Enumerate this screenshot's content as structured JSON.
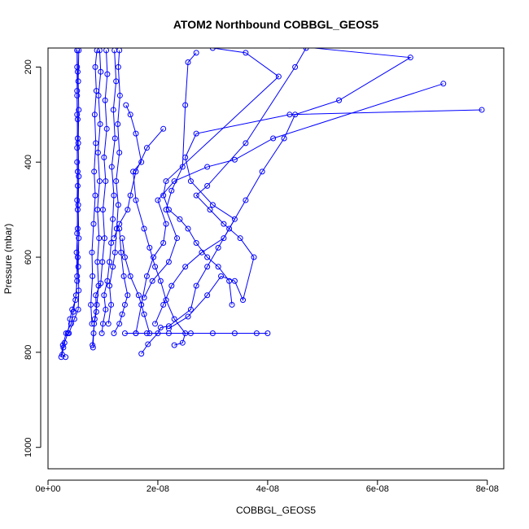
{
  "chart_data": {
    "type": "scatter",
    "title": "ATOM2 Northbound COBBGL_GEOS5",
    "xlabel": "COBBGL_GEOS5",
    "ylabel": "Pressure (mbar)",
    "xlim": [
      0,
      8.3e-08
    ],
    "ylim": [
      1045,
      160
    ],
    "y_reversed": true,
    "grid": false,
    "x_ticks": [
      0,
      2e-08,
      4e-08,
      6e-08,
      8e-08
    ],
    "x_tick_labels": [
      "0e+00",
      "2e-08",
      "4e-08",
      "6e-08",
      "8e-08"
    ],
    "y_ticks": [
      200,
      400,
      600,
      800,
      1000
    ],
    "y_tick_labels": [
      "200",
      "400",
      "600",
      "800",
      "1000"
    ],
    "series_color": "#0000ff",
    "series": [
      {
        "values": [
          [
            3.2e-09,
            810
          ],
          [
            2.6e-09,
            805
          ],
          [
            2.8e-09,
            790
          ],
          [
            3e-09,
            780
          ],
          [
            3.6e-09,
            760
          ],
          [
            4e-09,
            730
          ],
          [
            4.4e-09,
            710
          ],
          [
            5e-09,
            690
          ],
          [
            5.3e-09,
            650
          ],
          [
            5.4e-09,
            600
          ],
          [
            5.3e-09,
            550
          ],
          [
            5.4e-09,
            500
          ],
          [
            5.4e-09,
            450
          ],
          [
            5.3e-09,
            400
          ],
          [
            5.4e-09,
            350
          ],
          [
            5.3e-09,
            300
          ],
          [
            5.3e-09,
            250
          ],
          [
            5.3e-09,
            200
          ],
          [
            5.3e-09,
            165
          ]
        ]
      },
      {
        "values": [
          [
            2.4e-09,
            810
          ],
          [
            2.7e-09,
            785
          ],
          [
            3.3e-09,
            760
          ],
          [
            4.2e-09,
            740
          ],
          [
            4.6e-09,
            715
          ],
          [
            5.1e-09,
            680
          ],
          [
            5.3e-09,
            640
          ],
          [
            5.2e-09,
            590
          ],
          [
            5.4e-09,
            540
          ],
          [
            5.3e-09,
            480
          ],
          [
            5.4e-09,
            420
          ],
          [
            5.3e-09,
            370
          ],
          [
            5.4e-09,
            310
          ],
          [
            5.3e-09,
            260
          ],
          [
            5.4e-09,
            210
          ],
          [
            5.3e-09,
            165
          ]
        ]
      },
      {
        "values": [
          [
            3.8e-09,
            760
          ],
          [
            4.8e-09,
            730
          ],
          [
            5.5e-09,
            710
          ],
          [
            5.6e-09,
            670
          ],
          [
            5.5e-09,
            620
          ],
          [
            5.6e-09,
            560
          ],
          [
            5.5e-09,
            490
          ],
          [
            5.6e-09,
            430
          ],
          [
            5.5e-09,
            360
          ],
          [
            5.6e-09,
            290
          ],
          [
            5.5e-09,
            230
          ],
          [
            5.6e-09,
            165
          ]
        ]
      },
      {
        "values": [
          [
            8.2e-09,
            790
          ],
          [
            8.3e-09,
            760
          ],
          [
            8.5e-09,
            730
          ],
          [
            8.9e-09,
            700
          ],
          [
            9.2e-09,
            660
          ],
          [
            9e-09,
            610
          ],
          [
            9.3e-09,
            560
          ],
          [
            9e-09,
            500
          ],
          [
            9.4e-09,
            440
          ],
          [
            9.1e-09,
            380
          ],
          [
            9.5e-09,
            320
          ],
          [
            9.2e-09,
            260
          ],
          [
            9.6e-09,
            210
          ],
          [
            9.4e-09,
            165
          ]
        ]
      },
      {
        "values": [
          [
            8.1e-09,
            785
          ],
          [
            8.4e-09,
            740
          ],
          [
            8.8e-09,
            715
          ],
          [
            8.7e-09,
            680
          ],
          [
            9.6e-09,
            655
          ],
          [
            9.9e-09,
            610
          ],
          [
            1.03e-08,
            560
          ],
          [
            1e-08,
            500
          ],
          [
            1.05e-08,
            440
          ],
          [
            1.02e-08,
            390
          ],
          [
            1.07e-08,
            330
          ],
          [
            1.04e-08,
            270
          ],
          [
            1.08e-08,
            215
          ],
          [
            1.06e-08,
            165
          ]
        ]
      },
      {
        "values": [
          [
            9.8e-09,
            760
          ],
          [
            1e-08,
            740
          ],
          [
            1.05e-08,
            710
          ],
          [
            1.02e-08,
            680
          ],
          [
            1.08e-08,
            650
          ],
          [
            1.12e-08,
            610
          ],
          [
            1.15e-08,
            570
          ],
          [
            1.18e-08,
            520
          ],
          [
            1.2e-08,
            470
          ],
          [
            1.16e-08,
            410
          ],
          [
            1.22e-08,
            350
          ],
          [
            1.19e-08,
            290
          ],
          [
            1.24e-08,
            230
          ],
          [
            1.21e-08,
            165
          ]
        ]
      },
      {
        "values": [
          [
            8e-09,
            740
          ],
          [
            7.8e-09,
            700
          ],
          [
            8.1e-09,
            640
          ],
          [
            8e-09,
            590
          ],
          [
            8.3e-09,
            530
          ],
          [
            8.6e-09,
            470
          ],
          [
            8.4e-09,
            420
          ],
          [
            8.7e-09,
            360
          ],
          [
            8.5e-09,
            300
          ],
          [
            8.8e-09,
            250
          ],
          [
            8.6e-09,
            200
          ],
          [
            8.9e-09,
            165
          ]
        ]
      },
      {
        "values": [
          [
            1.1e-08,
            740
          ],
          [
            1.15e-08,
            700
          ],
          [
            1.12e-08,
            660
          ],
          [
            1.18e-08,
            620
          ],
          [
            1.22e-08,
            590
          ],
          [
            1.25e-08,
            540
          ],
          [
            1.28e-08,
            490
          ],
          [
            1.24e-08,
            440
          ],
          [
            1.3e-08,
            380
          ],
          [
            1.27e-08,
            320
          ],
          [
            1.31e-08,
            260
          ],
          [
            1.28e-08,
            200
          ],
          [
            1.3e-08,
            165
          ]
        ]
      },
      {
        "values": [
          [
            1.2e-08,
            760
          ],
          [
            1.3e-08,
            740
          ],
          [
            1.35e-08,
            720
          ],
          [
            1.4e-08,
            700
          ],
          [
            1.45e-08,
            680
          ],
          [
            1.38e-08,
            640
          ],
          [
            1.33e-08,
            590
          ],
          [
            1.3e-08,
            540
          ]
        ]
      },
      {
        "values": [
          [
            1.7e-08,
            803
          ],
          [
            1.82e-08,
            783
          ],
          [
            2e-08,
            760
          ],
          [
            2.05e-08,
            748
          ],
          [
            2.2e-08,
            745
          ],
          [
            2.6e-08,
            710
          ],
          [
            2.7e-08,
            660
          ],
          [
            2.9e-08,
            620
          ],
          [
            3.1e-08,
            580
          ],
          [
            3.3e-08,
            540
          ],
          [
            3.6e-08,
            480
          ],
          [
            3.9e-08,
            420
          ],
          [
            4.3e-08,
            350
          ],
          [
            4.5e-08,
            300
          ],
          [
            5.3e-08,
            270
          ],
          [
            6.6e-08,
            180
          ],
          [
            4.4e-08,
            155
          ]
        ]
      },
      {
        "values": [
          [
            1.95e-08,
            740
          ],
          [
            2.1e-08,
            700
          ],
          [
            2.25e-08,
            660
          ],
          [
            2.5e-08,
            620
          ],
          [
            2.8e-08,
            590
          ],
          [
            3.2e-08,
            560
          ],
          [
            3.4e-08,
            520
          ],
          [
            3e-08,
            490
          ],
          [
            2.6e-08,
            440
          ],
          [
            2.5e-08,
            390
          ],
          [
            2.7e-08,
            340
          ],
          [
            4.4e-08,
            300
          ],
          [
            7.9e-08,
            290
          ]
        ]
      },
      {
        "values": [
          [
            1.6e-08,
            760
          ],
          [
            1.7e-08,
            700
          ],
          [
            1.8e-08,
            640
          ],
          [
            1.92e-08,
            600
          ],
          [
            2.1e-08,
            570
          ],
          [
            2.15e-08,
            530
          ],
          [
            2e-08,
            480
          ],
          [
            2.3e-08,
            440
          ],
          [
            2.9e-08,
            410
          ],
          [
            3.4e-08,
            395
          ],
          [
            4.1e-08,
            350
          ],
          [
            7.2e-08,
            235
          ]
        ]
      },
      {
        "values": [
          [
            2.2e-08,
            750
          ],
          [
            2.55e-08,
            725
          ],
          [
            2.9e-08,
            680
          ],
          [
            3.15e-08,
            640
          ],
          [
            3.4e-08,
            650
          ],
          [
            3.55e-08,
            690
          ],
          [
            3.75e-08,
            600
          ],
          [
            3.5e-08,
            560
          ],
          [
            3.2e-08,
            530
          ],
          [
            2.95e-08,
            500
          ],
          [
            2.7e-08,
            470
          ],
          [
            2.9e-08,
            450
          ],
          [
            3.6e-08,
            360
          ],
          [
            4.5e-08,
            200
          ],
          [
            4.7e-08,
            160
          ]
        ]
      },
      {
        "values": [
          [
            2.3e-08,
            785
          ],
          [
            2.45e-08,
            780
          ],
          [
            2.5e-08,
            760
          ],
          [
            2.3e-08,
            730
          ],
          [
            2.15e-08,
            690
          ],
          [
            2.05e-08,
            650
          ],
          [
            1.95e-08,
            620
          ],
          [
            1.85e-08,
            580
          ],
          [
            1.75e-08,
            540
          ],
          [
            1.6e-08,
            480
          ],
          [
            1.55e-08,
            420
          ],
          [
            1.7e-08,
            400
          ],
          [
            1.6e-08,
            340
          ],
          [
            1.5e-08,
            300
          ],
          [
            1.42e-08,
            280
          ]
        ]
      },
      {
        "values": [
          [
            1.4e-08,
            760
          ],
          [
            1.6e-08,
            760
          ],
          [
            1.8e-08,
            760
          ],
          [
            2.2e-08,
            760
          ],
          [
            2.6e-08,
            760
          ],
          [
            3e-08,
            760
          ],
          [
            3.4e-08,
            760
          ],
          [
            3.8e-08,
            760
          ],
          [
            4e-08,
            760
          ]
        ]
      },
      {
        "values": [
          [
            1.75e-08,
            685
          ],
          [
            1.9e-08,
            650
          ],
          [
            2.2e-08,
            610
          ],
          [
            2.35e-08,
            560
          ],
          [
            2.15e-08,
            500
          ],
          [
            2.25e-08,
            460
          ],
          [
            2.45e-08,
            410
          ],
          [
            2.5e-08,
            280
          ],
          [
            2.55e-08,
            190
          ],
          [
            2.7e-08,
            170
          ]
        ]
      },
      {
        "values": [
          [
            3.35e-08,
            700
          ],
          [
            3.3e-08,
            650
          ],
          [
            3.1e-08,
            620
          ],
          [
            2.9e-08,
            600
          ],
          [
            2.7e-08,
            570
          ],
          [
            2.55e-08,
            540
          ],
          [
            2.4e-08,
            520
          ],
          [
            2.2e-08,
            500
          ],
          [
            2.1e-08,
            470
          ],
          [
            2.15e-08,
            440
          ],
          [
            4.2e-08,
            220
          ],
          [
            3.6e-08,
            170
          ],
          [
            3e-08,
            160
          ]
        ]
      },
      {
        "values": [
          [
            1.85e-08,
            760
          ],
          [
            1.75e-08,
            720
          ],
          [
            1.65e-08,
            680
          ],
          [
            1.5e-08,
            640
          ],
          [
            1.4e-08,
            600
          ],
          [
            1.35e-08,
            560
          ]
        ]
      },
      {
        "values": [
          [
            2.1e-08,
            330
          ],
          [
            1.8e-08,
            370
          ],
          [
            1.6e-08,
            420
          ],
          [
            1.5e-08,
            470
          ],
          [
            1.45e-08,
            500
          ],
          [
            1.3e-08,
            530
          ],
          [
            1.2e-08,
            560
          ]
        ]
      }
    ]
  }
}
